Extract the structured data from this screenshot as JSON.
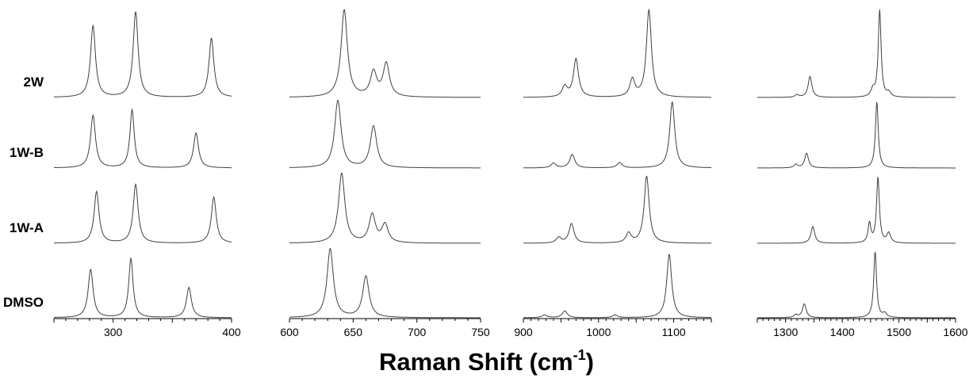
{
  "chart_data": {
    "type": "line",
    "xlabel_main": "Raman Shift (cm",
    "xlabel_sup": "-1",
    "xlabel_close": ")",
    "samples": [
      "2W",
      "1W-B",
      "1W-A",
      "DMSO"
    ],
    "line_color": "#404040",
    "panels": [
      {
        "xlim": [
          250,
          400
        ],
        "ticks": [
          300,
          400
        ],
        "peaks": {
          "2W": [
            [
              283,
              0.82,
              2.5
            ],
            [
              319,
              0.98,
              2.5
            ],
            [
              383,
              0.68,
              2.5
            ]
          ],
          "1W-B": [
            [
              283,
              0.78,
              2.5
            ],
            [
              316,
              0.86,
              2.2
            ],
            [
              370,
              0.52,
              2.5
            ]
          ],
          "1W-A": [
            [
              286,
              0.74,
              2.5
            ],
            [
              319,
              0.84,
              2.5
            ],
            [
              385,
              0.66,
              2.5
            ]
          ],
          "DMSO": [
            [
              281,
              0.7,
              2.5
            ],
            [
              315,
              0.86,
              2.2
            ],
            [
              364,
              0.44,
              2.5
            ]
          ]
        }
      },
      {
        "xlim": [
          600,
          750
        ],
        "ticks": [
          600,
          650,
          700,
          750
        ],
        "peaks": {
          "2W": [
            [
              643,
              1.0,
              3.0
            ],
            [
              666,
              0.28,
              3.0
            ],
            [
              676,
              0.38,
              3.0
            ]
          ],
          "1W-B": [
            [
              638,
              1.0,
              3.0
            ],
            [
              666,
              0.62,
              3.0
            ]
          ],
          "1W-A": [
            [
              641,
              1.0,
              3.0
            ],
            [
              665,
              0.4,
              3.0
            ],
            [
              675,
              0.26,
              3.0
            ]
          ],
          "DMSO": [
            [
              632,
              1.0,
              3.0
            ],
            [
              660,
              0.6,
              3.0
            ]
          ]
        }
      },
      {
        "xlim": [
          900,
          1150
        ],
        "ticks": [
          900,
          1000,
          1100
        ],
        "peaks": {
          "2W": [
            [
              955,
              0.12,
              4
            ],
            [
              970,
              0.44,
              4
            ],
            [
              1045,
              0.2,
              4
            ],
            [
              1067,
              1.0,
              4
            ]
          ],
          "1W-B": [
            [
              940,
              0.07,
              4
            ],
            [
              965,
              0.2,
              4
            ],
            [
              1028,
              0.08,
              4
            ],
            [
              1098,
              0.98,
              4
            ]
          ],
          "1W-A": [
            [
              947,
              0.08,
              4
            ],
            [
              964,
              0.28,
              4
            ],
            [
              1040,
              0.14,
              4
            ],
            [
              1064,
              0.96,
              4
            ]
          ],
          "DMSO": [
            [
              928,
              0.04,
              4
            ],
            [
              955,
              0.1,
              4
            ],
            [
              1022,
              0.04,
              4
            ],
            [
              1094,
              0.92,
              4
            ]
          ]
        }
      },
      {
        "xlim": [
          1250,
          1600
        ],
        "ticks": [
          1300,
          1400,
          1500,
          1600
        ],
        "peaks": {
          "2W": [
            [
              1320,
              0.03,
              4
            ],
            [
              1343,
              0.24,
              4
            ],
            [
              1454,
              0.08,
              4
            ],
            [
              1466,
              1.0,
              3
            ],
            [
              1482,
              0.05,
              4
            ]
          ],
          "1W-B": [
            [
              1318,
              0.05,
              4
            ],
            [
              1337,
              0.22,
              4
            ],
            [
              1461,
              0.98,
              3
            ]
          ],
          "1W-A": [
            [
              1348,
              0.24,
              4
            ],
            [
              1448,
              0.28,
              3
            ],
            [
              1463,
              0.94,
              3
            ],
            [
              1482,
              0.14,
              4
            ]
          ],
          "DMSO": [
            [
              1318,
              0.04,
              4
            ],
            [
              1333,
              0.2,
              4
            ],
            [
              1458,
              0.96,
              3
            ],
            [
              1475,
              0.06,
              4
            ]
          ]
        }
      }
    ]
  }
}
